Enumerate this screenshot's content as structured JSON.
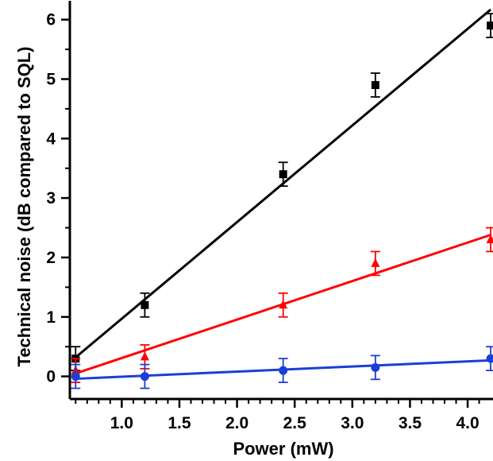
{
  "chart_data": {
    "type": "scatter",
    "xlabel": "Power (mW)",
    "ylabel": "Technical noise  (dB  compared to SQL)",
    "xlim": [
      0.55,
      4.22
    ],
    "ylim": [
      -0.38,
      6.33
    ],
    "x_ticks": [
      "1.0",
      "1.5",
      "2.0",
      "2.5",
      "3.0",
      "3.5",
      "4.0"
    ],
    "y_ticks": [
      "0",
      "1",
      "2",
      "3",
      "4",
      "5",
      "6"
    ],
    "grid": false,
    "series": [
      {
        "marker": "square",
        "color": "#000000",
        "x": [
          0.6,
          1.2,
          2.4,
          3.2,
          4.2
        ],
        "y": [
          0.3,
          1.2,
          3.4,
          4.9,
          5.9
        ],
        "err": [
          0.2,
          0.2,
          0.2,
          0.2,
          0.2
        ],
        "fit": [
          [
            0.6,
            0.32
          ],
          [
            4.2,
            6.17
          ]
        ]
      },
      {
        "marker": "triangle",
        "color": "#ff0000",
        "x": [
          0.6,
          1.2,
          2.4,
          3.2,
          4.2
        ],
        "y": [
          0.1,
          0.33,
          1.2,
          1.9,
          2.3
        ],
        "err": [
          0.2,
          0.2,
          0.2,
          0.2,
          0.2
        ],
        "fit": [
          [
            0.6,
            0.05
          ],
          [
            4.2,
            2.38
          ]
        ]
      },
      {
        "marker": "circle",
        "color": "#1a3fd6",
        "x": [
          0.6,
          1.2,
          2.4,
          3.2,
          4.2
        ],
        "y": [
          0.0,
          0.0,
          0.1,
          0.15,
          0.3
        ],
        "err": [
          0.2,
          0.2,
          0.2,
          0.2,
          0.2
        ],
        "fit": [
          [
            0.6,
            -0.04
          ],
          [
            4.2,
            0.27
          ]
        ]
      }
    ]
  }
}
